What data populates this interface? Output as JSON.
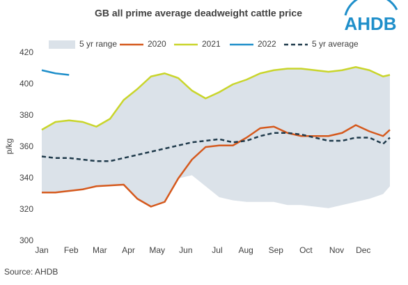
{
  "chart_data": {
    "type": "line",
    "title": "GB all prime average deadweight cattle price",
    "logo": "AHDB",
    "y_label": "p/kg",
    "source": "Source: AHDB",
    "x": [
      1,
      3,
      5,
      7,
      9,
      11,
      13,
      15,
      17,
      19,
      21,
      23,
      25,
      27,
      29,
      31,
      33,
      35,
      37,
      39,
      41,
      43,
      45,
      47,
      49,
      51,
      52
    ],
    "xlim": [
      1,
      52
    ],
    "xticks": [
      {
        "value": 1,
        "label": "Jan"
      },
      {
        "value": 5.3,
        "label": "Feb"
      },
      {
        "value": 9.5,
        "label": "Mar"
      },
      {
        "value": 13.7,
        "label": "Apr"
      },
      {
        "value": 17.9,
        "label": "May"
      },
      {
        "value": 22.1,
        "label": "Jun"
      },
      {
        "value": 26.7,
        "label": "Jul"
      },
      {
        "value": 30.9,
        "label": "Aug"
      },
      {
        "value": 35.3,
        "label": "Sep"
      },
      {
        "value": 39.7,
        "label": "Oct"
      },
      {
        "value": 44.2,
        "label": "Nov"
      },
      {
        "value": 48.1,
        "label": "Dec"
      }
    ],
    "ylim": [
      300,
      420
    ],
    "yticks": [
      300,
      320,
      340,
      360,
      380,
      400,
      420
    ],
    "grid": false,
    "legend": "top",
    "range": {
      "name": "5 yr range",
      "color": "#dbe2e9",
      "upper": [
        371,
        376,
        377,
        376,
        373,
        378,
        390,
        397,
        405,
        407,
        404,
        396,
        391,
        395,
        400,
        403,
        407,
        409,
        410,
        410,
        409,
        408,
        409,
        411,
        409,
        405,
        406
      ],
      "lower": [
        331,
        331,
        332,
        333,
        335,
        335.5,
        336,
        327,
        322,
        325,
        340,
        342,
        335,
        328,
        326,
        325,
        325,
        325,
        323,
        323,
        322,
        321,
        323,
        325,
        327,
        330,
        335
      ]
    },
    "series": [
      {
        "name": "2020",
        "color": "#d5591d",
        "dashed": false,
        "values": [
          331,
          331,
          332,
          333,
          335,
          335.5,
          336,
          327,
          322,
          325,
          340,
          352,
          360,
          361,
          361,
          366,
          372,
          373,
          369,
          367,
          367,
          367,
          369,
          374,
          370,
          367,
          371
        ]
      },
      {
        "name": "2021",
        "color": "#c9d52b",
        "dashed": false,
        "values": [
          371,
          376,
          377,
          376,
          373,
          378,
          390,
          397,
          405,
          407,
          404,
          396,
          391,
          395,
          400,
          403,
          407,
          409,
          410,
          410,
          409,
          408,
          409,
          411,
          409,
          405,
          406
        ]
      },
      {
        "name": "2022",
        "color": "#1f8fca",
        "dashed": false,
        "values": [
          409,
          407,
          406,
          null,
          null,
          null,
          null,
          null,
          null,
          null,
          null,
          null,
          null,
          null,
          null,
          null,
          null,
          null,
          null,
          null,
          null,
          null,
          null,
          null,
          null,
          null,
          null
        ]
      },
      {
        "name": "5 yr average",
        "color": "#1f3a4b",
        "dashed": true,
        "values": [
          354,
          353,
          353,
          352,
          351,
          351,
          353,
          355,
          357,
          359,
          361,
          363,
          364,
          365,
          363,
          364,
          367,
          369,
          369,
          368,
          366,
          364,
          364,
          366,
          366,
          362,
          366
        ]
      }
    ]
  }
}
